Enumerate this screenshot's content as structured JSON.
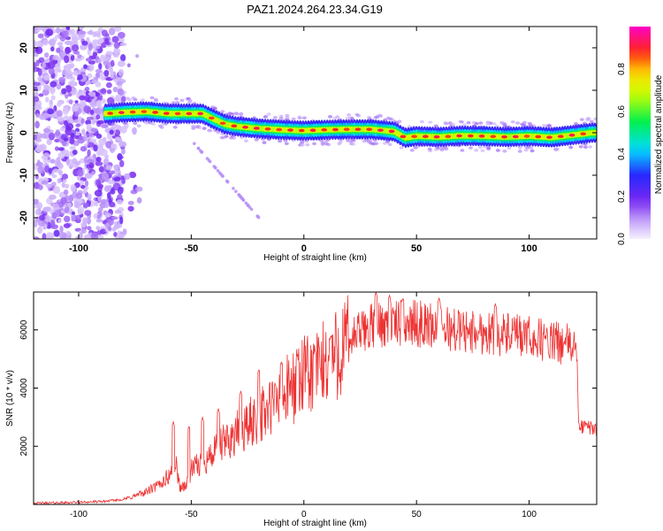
{
  "title": "PAZ1.2024.264.23.34.G19",
  "chart_data": [
    {
      "type": "heatmap",
      "title": "PAZ1.2024.264.23.34.G19",
      "xlabel": "Height of straight line (km)",
      "ylabel": "Frequency (Hz)",
      "xlim": [
        -120,
        130
      ],
      "ylim": [
        -25,
        25
      ],
      "xticks": [
        -100,
        -50,
        0,
        50,
        100
      ],
      "yticks": [
        -20,
        -10,
        0,
        10,
        20
      ],
      "colorbar": {
        "label": "Normalized spectral amplitude",
        "range": [
          0,
          1
        ],
        "ticks": [
          0.0,
          0.2,
          0.4,
          0.6,
          0.8
        ],
        "colormap": "rainbow (violet→blue→cyan→green→yellow→red→magenta)"
      },
      "ridge": {
        "description": "dominant frequency track",
        "x": [
          -88,
          -80,
          -70,
          -60,
          -50,
          -45,
          -40,
          -35,
          -30,
          -20,
          -10,
          0,
          10,
          20,
          30,
          40,
          45,
          50,
          60,
          70,
          80,
          90,
          100,
          110,
          120,
          128
        ],
        "y": [
          4.5,
          4.8,
          5.0,
          4.5,
          4.5,
          4.5,
          3.2,
          2.0,
          1.5,
          1.0,
          0.7,
          0.5,
          0.7,
          0.8,
          0.8,
          0.3,
          -1.2,
          -0.8,
          -1.0,
          -0.7,
          -0.8,
          -1.0,
          -0.8,
          -1.1,
          -0.5,
          0.0
        ]
      },
      "noise_region_x": [
        -120,
        -80
      ]
    },
    {
      "type": "line",
      "xlabel": "Height of straight line (km)",
      "ylabel": "SNR (10 * v/v)",
      "xlim": [
        -120,
        130
      ],
      "ylim": [
        0,
        7300
      ],
      "xticks": [
        -100,
        -50,
        0,
        50,
        100
      ],
      "yticks": [
        2000,
        4000,
        6000
      ],
      "color": "#ee3333",
      "series": [
        {
          "x": [
            -120,
            -110,
            -100,
            -90,
            -80,
            -75,
            -70,
            -65,
            -60,
            -57,
            -55,
            -52,
            -50,
            -45,
            -40,
            -35,
            -30,
            -25,
            -20,
            -15,
            -10,
            -5,
            0,
            5,
            10,
            15,
            20,
            25,
            30,
            35,
            40,
            45,
            50,
            55,
            60,
            65,
            70,
            75,
            80,
            85,
            90,
            95,
            100,
            105,
            110,
            115,
            120,
            121,
            122,
            125,
            130
          ],
          "values": [
            50,
            60,
            80,
            100,
            180,
            300,
            450,
            650,
            1000,
            1500,
            600,
            700,
            1200,
            1500,
            1800,
            2200,
            2500,
            2800,
            3100,
            3400,
            3800,
            4200,
            4500,
            4700,
            5000,
            5400,
            5700,
            6000,
            6200,
            6300,
            6300,
            6300,
            6300,
            6250,
            6200,
            6100,
            6050,
            6000,
            6000,
            5950,
            5900,
            5850,
            5800,
            5750,
            5650,
            5600,
            5550,
            5500,
            2700,
            2700,
            2600
          ]
        }
      ],
      "spikes": [
        {
          "x": -58,
          "y": 2850
        },
        {
          "x": -51,
          "y": 2700
        },
        {
          "x": -45,
          "y": 3000
        },
        {
          "x": -38,
          "y": 3300
        },
        {
          "x": -28,
          "y": 3900
        },
        {
          "x": -20,
          "y": 4650
        },
        {
          "x": -10,
          "y": 4900
        },
        {
          "x": -3,
          "y": 5100
        },
        {
          "x": 5,
          "y": 5300
        },
        {
          "x": 12,
          "y": 5800
        },
        {
          "x": 32,
          "y": 7300
        },
        {
          "x": 38,
          "y": 7200
        },
        {
          "x": 44,
          "y": 7100
        },
        {
          "x": 60,
          "y": 7100
        },
        {
          "x": 85,
          "y": 6900
        }
      ]
    }
  ]
}
